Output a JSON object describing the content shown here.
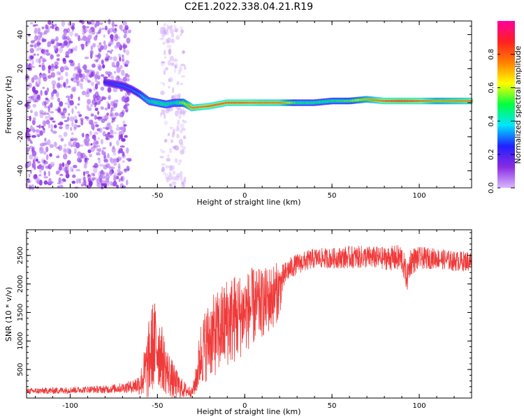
{
  "title": "C2E1.2022.338.04.21.R19",
  "colors": {
    "snr_line": "#f03a3a",
    "axis": "#000000",
    "background": "#ffffff"
  },
  "chart_data": [
    {
      "type": "heatmap",
      "xlabel": "Height of straight line (km)",
      "ylabel": "Frequency (Hz)",
      "xlim": [
        -125,
        130
      ],
      "ylim": [
        -50,
        48
      ],
      "x_ticks": [
        "-100",
        "-50",
        "0",
        "50",
        "100"
      ],
      "x_tick_values": [
        -100,
        -50,
        0,
        50,
        100
      ],
      "y_ticks": [
        "-40",
        "-20",
        "0",
        "20",
        "40"
      ],
      "y_tick_values": [
        -40,
        -20,
        0,
        20,
        40
      ],
      "colorbar": {
        "label": "Normalized spectral amplitude",
        "range": [
          0,
          1
        ],
        "ticks": [
          "0.0",
          "0.2",
          "0.4",
          "0.6",
          "0.8"
        ],
        "tick_values": [
          0.0,
          0.2,
          0.4,
          0.6,
          0.8
        ],
        "colormap": [
          "#d9b8ff",
          "#8a2be2",
          "#2020ff",
          "#00e5ff",
          "#00ff40",
          "#ffff00",
          "#ff8000",
          "#ff2020",
          "#ff00a0"
        ]
      },
      "features": {
        "noise_region_1": {
          "x_range": [
            -125,
            -66
          ],
          "f_range": [
            -50,
            48
          ],
          "amplitude": 0.05
        },
        "noise_region_2": {
          "x_range": [
            -48,
            -34
          ],
          "f_range": [
            -50,
            48
          ],
          "amplitude": 0.02
        },
        "signal_ridge": {
          "x": [
            -80,
            -70,
            -65,
            -60,
            -55,
            -50,
            -45,
            -40,
            -35,
            -30,
            -20,
            -10,
            0,
            10,
            20,
            30,
            40,
            50,
            60,
            70,
            80,
            90,
            100,
            110,
            120,
            130
          ],
          "f": [
            12,
            10,
            8,
            5,
            1,
            0,
            -1,
            0,
            0,
            -3,
            -2,
            0,
            0,
            0,
            0,
            0,
            0,
            1,
            1,
            2,
            1,
            1,
            1,
            1,
            1,
            1
          ],
          "amplitude": [
            0.25,
            0.3,
            0.3,
            0.35,
            0.45,
            0.5,
            0.5,
            0.45,
            0.6,
            0.8,
            0.85,
            0.85,
            0.85,
            0.8,
            0.8,
            0.5,
            0.5,
            0.5,
            0.55,
            0.7,
            0.85,
            0.9,
            0.85,
            0.7,
            0.75,
            0.8
          ]
        }
      }
    },
    {
      "type": "line",
      "xlabel": "Height of straight line (km)",
      "ylabel": "SNR (10 * v/v)",
      "xlim": [
        -125,
        130
      ],
      "ylim": [
        0,
        2950
      ],
      "x_ticks": [
        "-100",
        "-50",
        "0",
        "50",
        "100"
      ],
      "x_tick_values": [
        -100,
        -50,
        0,
        50,
        100
      ],
      "y_ticks": [
        "500",
        "1000",
        "1500",
        "2000",
        "2500"
      ],
      "y_tick_values": [
        500,
        1000,
        1500,
        2000,
        2500
      ],
      "series": [
        {
          "color": "#f03a3a",
          "x": [
            -125,
            -110,
            -100,
            -90,
            -80,
            -70,
            -65,
            -60,
            -57,
            -55,
            -53,
            -50,
            -48,
            -45,
            -40,
            -35,
            -30,
            -28,
            -25,
            -20,
            -15,
            -10,
            -5,
            0,
            5,
            10,
            15,
            20,
            22,
            25,
            30,
            35,
            40,
            45,
            50,
            60,
            70,
            80,
            90,
            93,
            95,
            100,
            110,
            120,
            130
          ],
          "y": [
            120,
            130,
            140,
            150,
            150,
            180,
            200,
            250,
            450,
            650,
            900,
            950,
            750,
            500,
            250,
            150,
            100,
            300,
            800,
            1050,
            1150,
            1350,
            1400,
            1500,
            1600,
            1650,
            1750,
            1900,
            2100,
            2250,
            2350,
            2400,
            2450,
            2450,
            2450,
            2470,
            2470,
            2450,
            2450,
            2100,
            2400,
            2450,
            2450,
            2400,
            2400
          ],
          "noise_amplitude": [
            50,
            60,
            60,
            60,
            70,
            90,
            110,
            200,
            500,
            700,
            800,
            800,
            600,
            450,
            300,
            150,
            80,
            250,
            600,
            700,
            750,
            800,
            800,
            700,
            700,
            600,
            600,
            500,
            250,
            200,
            180,
            180,
            180,
            180,
            180,
            200,
            200,
            200,
            250,
            250,
            250,
            200,
            180,
            180,
            180
          ]
        }
      ]
    }
  ]
}
